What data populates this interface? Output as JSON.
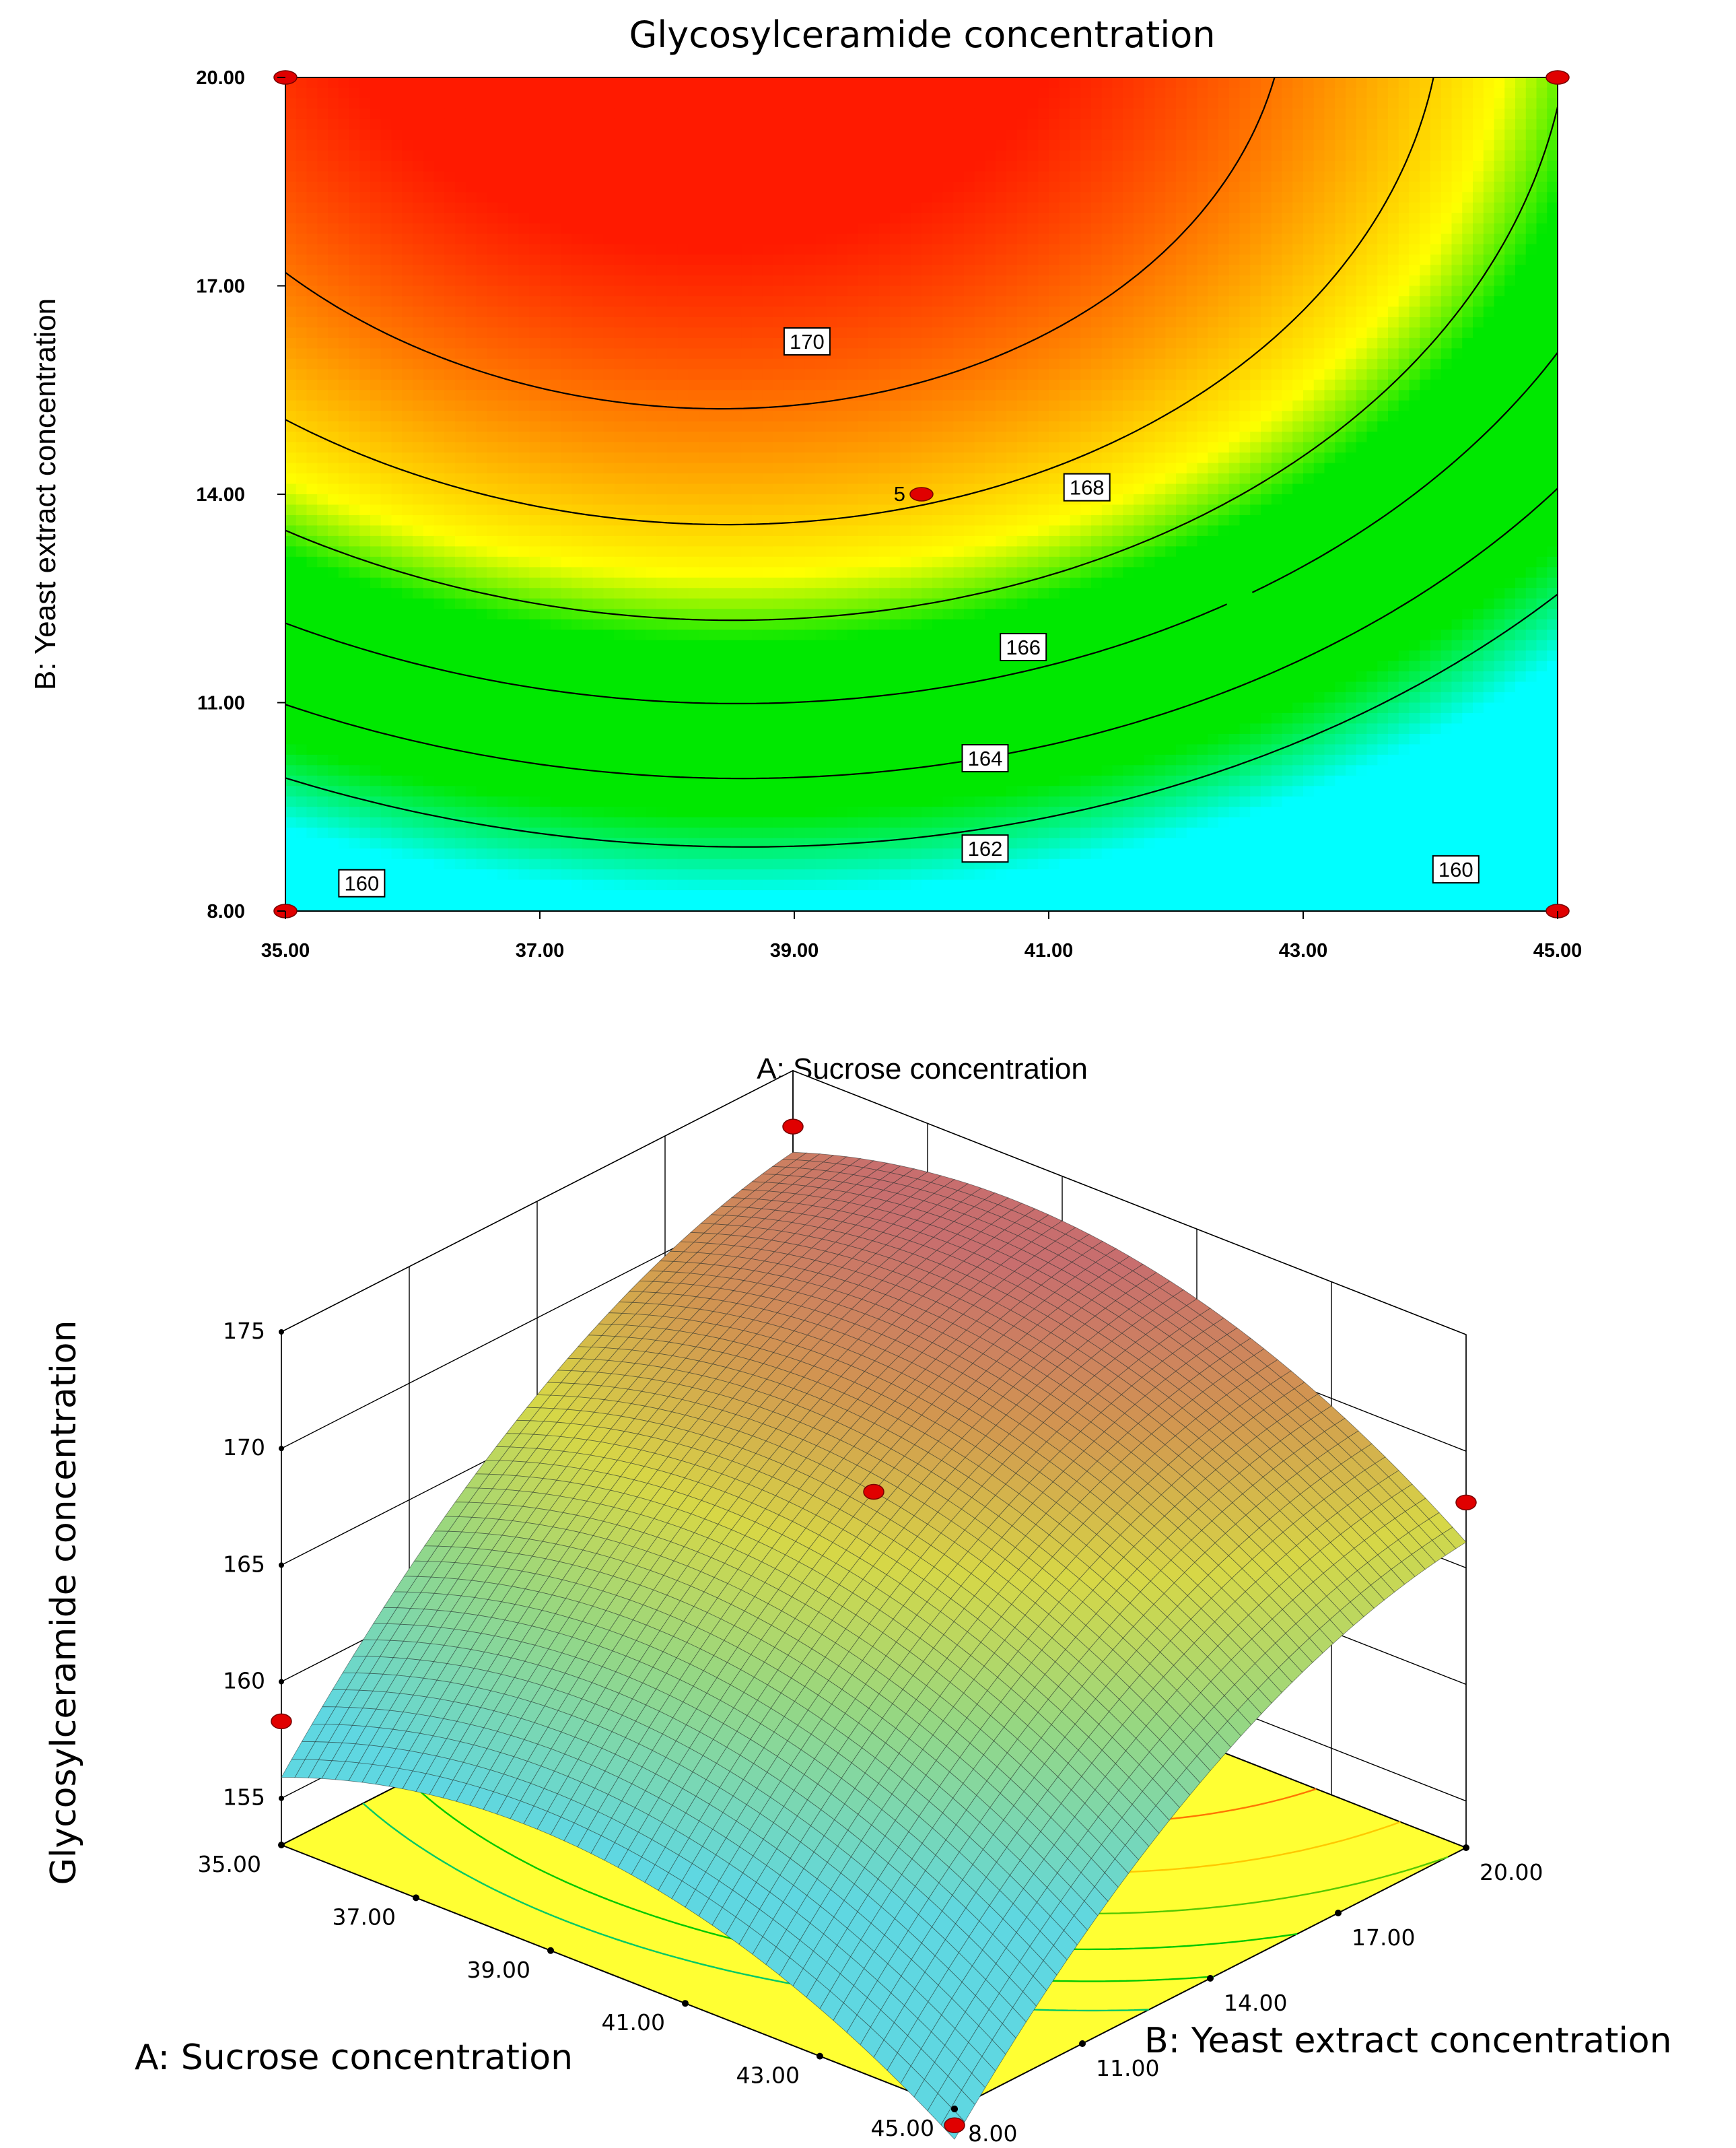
{
  "chart_data": [
    {
      "type": "contour",
      "title": "Glycosylceramide concentration",
      "xlabel": "A: Sucrose concentration",
      "ylabel": "B: Yeast extract concentration",
      "xlim": [
        35,
        45
      ],
      "ylim": [
        8,
        20
      ],
      "xticks": [
        "35.00",
        "37.00",
        "39.00",
        "41.00",
        "43.00",
        "45.00"
      ],
      "yticks": [
        "8.00",
        "11.00",
        "14.00",
        "17.00",
        "20.00"
      ],
      "contour_levels": [
        160,
        162,
        164,
        166,
        168,
        170
      ],
      "contour_labels": [
        {
          "label": "170",
          "x": 39.1,
          "y": 16.2
        },
        {
          "label": "168",
          "x": 41.3,
          "y": 14.1
        },
        {
          "label": "166",
          "x": 40.8,
          "y": 11.8
        },
        {
          "label": "164",
          "x": 40.5,
          "y": 10.2
        },
        {
          "label": "162",
          "x": 40.5,
          "y": 8.9
        },
        {
          "label": "160",
          "x": 35.6,
          "y": 8.4
        },
        {
          "label": "160",
          "x": 44.2,
          "y": 8.6
        }
      ],
      "design_points": [
        {
          "x": 35,
          "y": 20
        },
        {
          "x": 45,
          "y": 20
        },
        {
          "x": 35,
          "y": 8
        },
        {
          "x": 45,
          "y": 8
        },
        {
          "x": 40,
          "y": 14,
          "label": "5"
        }
      ],
      "colors": {
        "high": "#ff1a00",
        "mid_high": "#ffd400",
        "mid": "#00e800",
        "low": "#00ffff"
      }
    },
    {
      "type": "surface3d",
      "zlabel": "Glycosylceramide concentration",
      "xlabel": "A: Sucrose concentration",
      "ylabel": "B: Yeast extract concentration",
      "xticks": [
        "35.00",
        "37.00",
        "39.00",
        "41.00",
        "43.00",
        "45.00"
      ],
      "yticks": [
        "8.00",
        "11.00",
        "14.00",
        "17.00",
        "20.00"
      ],
      "zticks": [
        "155",
        "160",
        "165",
        "170",
        "175"
      ],
      "xlim": [
        35,
        45
      ],
      "ylim": [
        8,
        20
      ],
      "zlim": [
        153,
        175
      ],
      "design_points": [
        {
          "x": 35,
          "y": 8,
          "z": 158.3
        },
        {
          "x": 35,
          "y": 20,
          "z": 172.6
        },
        {
          "x": 45,
          "y": 20,
          "z": 167.8
        },
        {
          "x": 45,
          "y": 8,
          "z": 152.3
        },
        {
          "x": 40,
          "y": 14,
          "z": 168.2,
          "label": "5"
        }
      ],
      "floor_color": "#ffff33"
    }
  ]
}
